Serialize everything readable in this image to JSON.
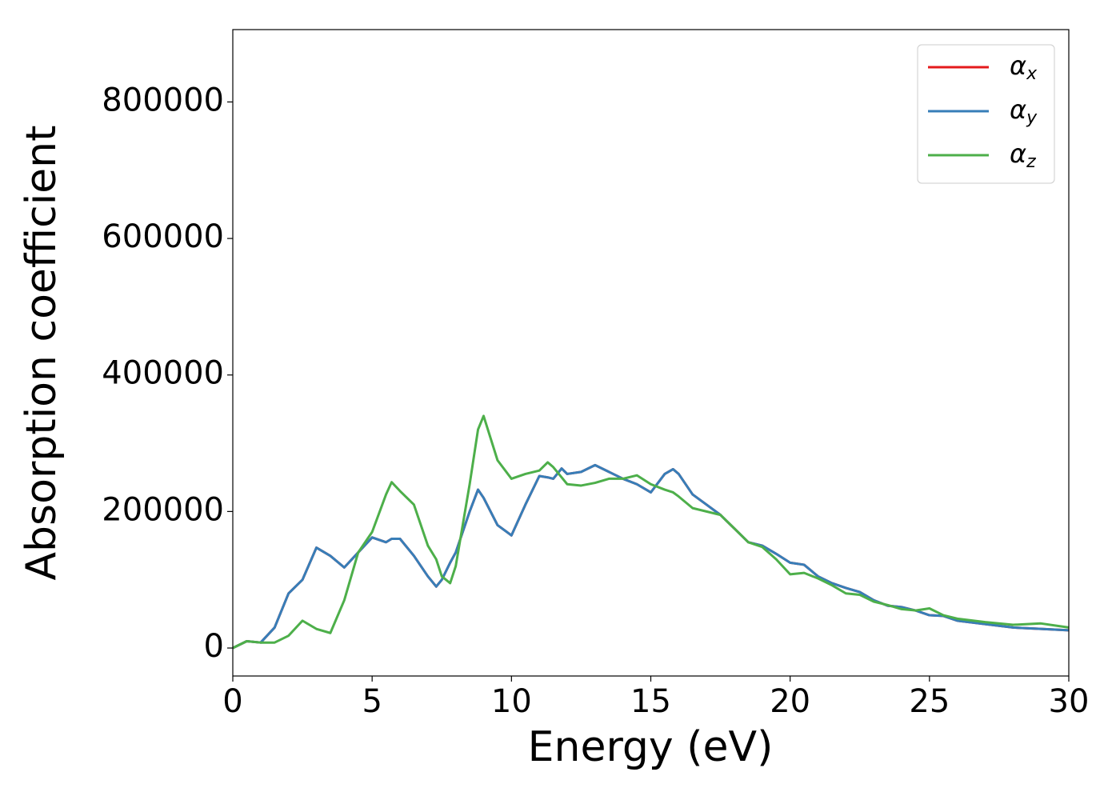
{
  "chart_data": {
    "type": "line",
    "xlabel": "Energy (eV)",
    "ylabel": "Absorption coefficient",
    "x": [
      0,
      0.5,
      1,
      1.5,
      2,
      2.5,
      3,
      3.5,
      4,
      4.5,
      5,
      5.5,
      5.7,
      6,
      6.5,
      7,
      7.3,
      7.5,
      7.8,
      8,
      8.5,
      8.8,
      9,
      9.5,
      10,
      10.5,
      11,
      11.3,
      11.5,
      11.8,
      12,
      12.5,
      13,
      13.5,
      14,
      14.5,
      15,
      15.5,
      15.8,
      16,
      16.5,
      17,
      17.5,
      18,
      18.5,
      19,
      19.5,
      20,
      20.5,
      21,
      21.5,
      22,
      22.5,
      23,
      23.5,
      24,
      24.5,
      25,
      25.5,
      26,
      27,
      28,
      29,
      30
    ],
    "series": [
      {
        "name": "αx",
        "color": "#e41a1c",
        "values": [
          0,
          10000,
          8000,
          30000,
          80000,
          100000,
          147000,
          135000,
          118000,
          140000,
          162000,
          155000,
          160000,
          160000,
          135000,
          105000,
          90000,
          100000,
          125000,
          140000,
          200000,
          232000,
          220000,
          180000,
          165000,
          210000,
          252000,
          250000,
          248000,
          263000,
          255000,
          258000,
          268000,
          258000,
          248000,
          240000,
          228000,
          255000,
          262000,
          255000,
          225000,
          210000,
          195000,
          175000,
          155000,
          150000,
          138000,
          125000,
          122000,
          105000,
          95000,
          88000,
          82000,
          70000,
          62000,
          60000,
          55000,
          48000,
          47000,
          40000,
          35000,
          30000,
          28000,
          26000
        ]
      },
      {
        "name": "αy",
        "color": "#377eb8",
        "values": [
          0,
          10000,
          8000,
          30000,
          80000,
          100000,
          147000,
          135000,
          118000,
          140000,
          162000,
          155000,
          160000,
          160000,
          135000,
          105000,
          90000,
          100000,
          125000,
          140000,
          200000,
          232000,
          220000,
          180000,
          165000,
          210000,
          252000,
          250000,
          248000,
          263000,
          255000,
          258000,
          268000,
          258000,
          248000,
          240000,
          228000,
          255000,
          262000,
          255000,
          225000,
          210000,
          195000,
          175000,
          155000,
          150000,
          138000,
          125000,
          122000,
          105000,
          95000,
          88000,
          82000,
          70000,
          62000,
          60000,
          55000,
          48000,
          47000,
          40000,
          35000,
          30000,
          28000,
          26000
        ]
      },
      {
        "name": "αz",
        "color": "#4daf4a",
        "values": [
          0,
          10000,
          8000,
          8000,
          18000,
          40000,
          28000,
          22000,
          70000,
          140000,
          170000,
          225000,
          243000,
          230000,
          210000,
          150000,
          130000,
          105000,
          95000,
          120000,
          240000,
          320000,
          340000,
          275000,
          248000,
          255000,
          260000,
          272000,
          265000,
          250000,
          240000,
          238000,
          242000,
          248000,
          248000,
          253000,
          240000,
          232000,
          228000,
          222000,
          205000,
          200000,
          195000,
          175000,
          155000,
          148000,
          130000,
          108000,
          110000,
          102000,
          92000,
          80000,
          78000,
          68000,
          63000,
          57000,
          55000,
          58000,
          48000,
          43000,
          38000,
          34000,
          36000,
          30000
        ]
      }
    ],
    "xlim": [
      0,
      30
    ],
    "xticks": [
      0,
      5,
      10,
      15,
      20,
      25,
      30
    ],
    "ylim": [
      -41000,
      906000
    ],
    "yticks": [
      0,
      200000,
      400000,
      600000,
      800000
    ],
    "grid": false,
    "legend": "upper right"
  }
}
